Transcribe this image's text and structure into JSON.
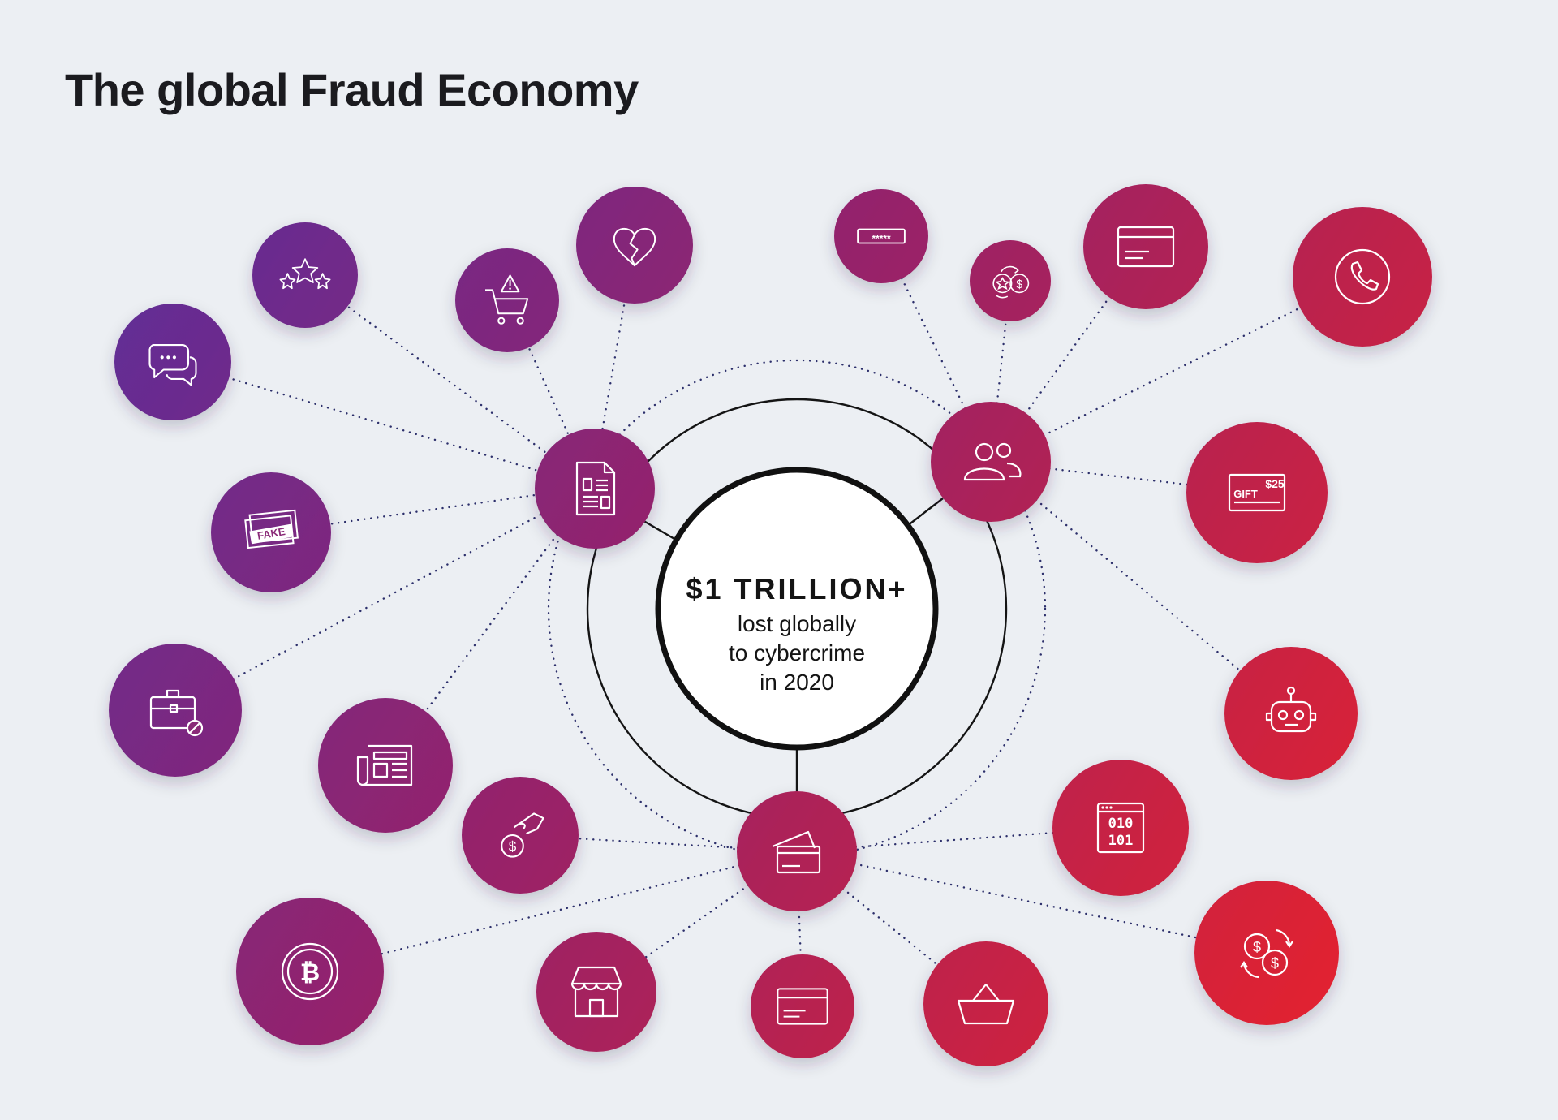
{
  "title": "The global Fraud Economy",
  "center": {
    "headline": "$1 TRILLION+",
    "line1": "lost globally",
    "line2": "to cybercrime",
    "line3": "in 2020"
  },
  "colors": {
    "background": "#eceff3",
    "gradient_start": "#5f2e98",
    "gradient_end": "#e3202f",
    "connector": "#141414",
    "dotted": "#2c2f6b"
  },
  "hubs": [
    {
      "id": "hub-document",
      "icon": "document-icon"
    },
    {
      "id": "hub-users",
      "icon": "users-icon"
    },
    {
      "id": "hub-credit-cards",
      "icon": "credit-cards-icon"
    }
  ],
  "nodes": [
    {
      "id": "chat",
      "icon": "chat-bubbles-icon",
      "hub": "hub-document"
    },
    {
      "id": "reviews",
      "icon": "star-rating-icon",
      "hub": "hub-document"
    },
    {
      "id": "cart-warning",
      "icon": "cart-warning-icon",
      "hub": "hub-document"
    },
    {
      "id": "broken-heart",
      "icon": "broken-heart-icon",
      "hub": "hub-document"
    },
    {
      "id": "fake-id",
      "icon": "fake-id-icon",
      "hub": "hub-document",
      "label": "FAKE"
    },
    {
      "id": "blocked-briefcase",
      "icon": "blocked-briefcase-icon",
      "hub": "hub-document"
    },
    {
      "id": "news",
      "icon": "newspaper-icon",
      "hub": "hub-document"
    },
    {
      "id": "password",
      "icon": "password-field-icon",
      "hub": "hub-users",
      "label": "*****"
    },
    {
      "id": "points-exchange",
      "icon": "points-exchange-icon",
      "hub": "hub-users"
    },
    {
      "id": "card-top",
      "icon": "credit-card-icon",
      "hub": "hub-users"
    },
    {
      "id": "phone",
      "icon": "phone-icon",
      "hub": "hub-users"
    },
    {
      "id": "gift-card",
      "icon": "gift-card-icon",
      "hub": "hub-users",
      "label": "GIFT",
      "amount": "$25"
    },
    {
      "id": "bot",
      "icon": "robot-icon",
      "hub": "hub-users"
    },
    {
      "id": "hand-coin",
      "icon": "hand-coin-icon",
      "hub": "hub-credit-cards"
    },
    {
      "id": "bitcoin",
      "icon": "bitcoin-icon",
      "hub": "hub-credit-cards"
    },
    {
      "id": "storefront",
      "icon": "storefront-icon",
      "hub": "hub-credit-cards"
    },
    {
      "id": "card-bottom",
      "icon": "credit-card-icon",
      "hub": "hub-credit-cards"
    },
    {
      "id": "basket",
      "icon": "shopping-basket-icon",
      "hub": "hub-credit-cards"
    },
    {
      "id": "binary",
      "icon": "binary-code-icon",
      "hub": "hub-credit-cards",
      "label": "010 101"
    },
    {
      "id": "currency-exchange",
      "icon": "currency-exchange-icon",
      "hub": "hub-credit-cards"
    }
  ]
}
